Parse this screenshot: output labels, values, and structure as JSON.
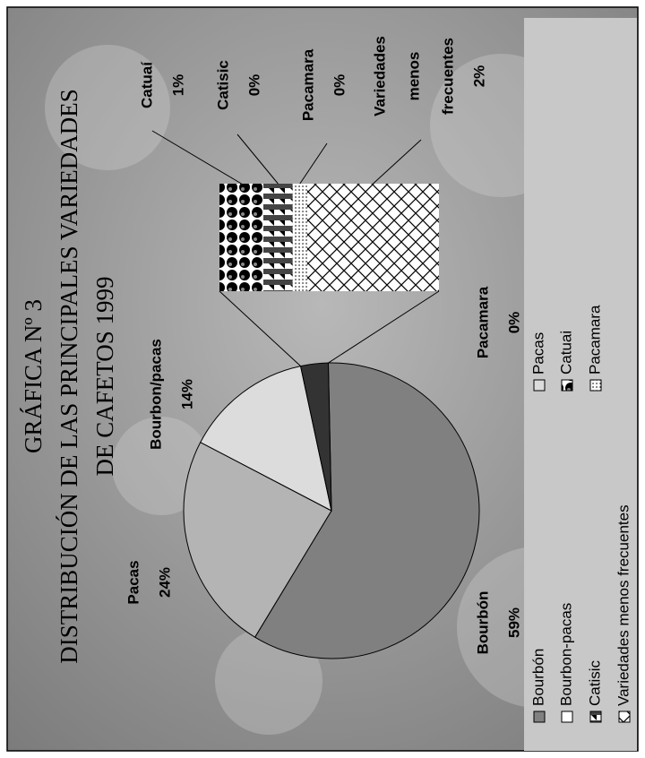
{
  "chart_data": {
    "type": "bar-of-pie",
    "title": [
      "GRÁFICA Nº 3",
      "DISTRIBUCIÓN DE LAS PRINCIPALES VARIEDADES",
      "DE CAFETOS 1999"
    ],
    "pie": {
      "categories": [
        "Bourbón",
        "Pacas",
        "Bourbon/pacas",
        "Pacamara"
      ],
      "values": [
        59,
        24,
        14,
        0
      ],
      "value_labels": [
        "59%",
        "24%",
        "14%",
        "0%"
      ],
      "colors": [
        "#808080",
        "#b4b4b4",
        "#dcdcdc",
        "#dcdcdc"
      ]
    },
    "bar": {
      "categories": [
        [
          "Catuaí"
        ],
        [
          "Catisic"
        ],
        [
          "Pacamara"
        ],
        [
          "Variedades",
          "menos",
          "frecuentes"
        ]
      ],
      "values": [
        0.6,
        0.4,
        0.2,
        1.8
      ],
      "value_labels": [
        "1%",
        "0%",
        "0%",
        "2%"
      ]
    },
    "legend": {
      "entries": [
        "Bourbón",
        "Bourbon-pacas",
        "Catisic",
        "Variedades menos frecuentes",
        "Pacas",
        "Catuai",
        "Pacamara"
      ]
    }
  }
}
